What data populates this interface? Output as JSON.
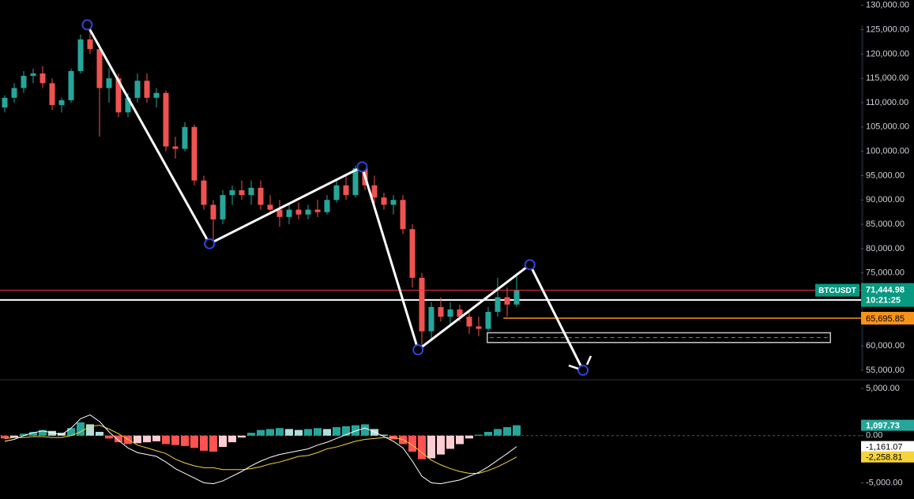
{
  "chart_data": [
    {
      "type": "candlestick",
      "symbol": "BTCUSDT",
      "countdown": "10:21:25",
      "ylim": [
        53200,
        131100
      ],
      "yticks": [
        {
          "value": 55000,
          "label": "55,000.00"
        },
        {
          "value": 60000,
          "label": "60,000.00"
        },
        {
          "value": 65000,
          "label": "65,000.00"
        },
        {
          "value": 70000,
          "label": "70,000.00"
        },
        {
          "value": 75000,
          "label": "75,000.00"
        },
        {
          "value": 80000,
          "label": "80,000.00"
        },
        {
          "value": 85000,
          "label": "85,000.00"
        },
        {
          "value": 90000,
          "label": "90,000.00"
        },
        {
          "value": 95000,
          "label": "95,000.00"
        },
        {
          "value": 100000,
          "label": "100,000.00"
        },
        {
          "value": 105000,
          "label": "105,000.00"
        },
        {
          "value": 110000,
          "label": "110,000.00"
        },
        {
          "value": 115000,
          "label": "115,000.00"
        },
        {
          "value": 120000,
          "label": "120,000.00"
        },
        {
          "value": 125000,
          "label": "125,000.00"
        },
        {
          "value": 130000,
          "label": "130,000.00"
        }
      ],
      "up_color": "#26a69a",
      "down_color": "#ef5350",
      "candles": {
        "open": [
          109000,
          111000,
          113000,
          115500,
          116000,
          114000,
          109500,
          110500,
          116500,
          123000,
          121000,
          113000,
          115000,
          108000,
          111000,
          114500,
          111000,
          112000,
          101000,
          100500,
          105000,
          94000,
          89000,
          86000,
          91000,
          92000,
          91000,
          92500,
          89000,
          88000,
          86500,
          88000,
          87000,
          88000,
          87500,
          90000,
          93000,
          91000,
          96500,
          93000,
          90500,
          89000,
          90000,
          84000,
          74000,
          63000,
          68000,
          66000,
          67500,
          66000,
          64000,
          63500,
          67000,
          70000,
          68500
        ],
        "high": [
          111500,
          114000,
          116500,
          117000,
          117500,
          115000,
          111000,
          117000,
          124000,
          126000,
          122000,
          117000,
          116000,
          112000,
          116000,
          116000,
          113000,
          112500,
          103000,
          106000,
          105500,
          95000,
          90000,
          92000,
          93000,
          94000,
          94000,
          94000,
          91000,
          90000,
          89000,
          89500,
          89000,
          90000,
          91000,
          94000,
          95000,
          97000,
          97000,
          95000,
          91500,
          91000,
          91000,
          85000,
          75000,
          69000,
          70000,
          69000,
          68500,
          67000,
          66000,
          68000,
          74000,
          72000,
          75000
        ],
        "low": [
          108000,
          110000,
          112000,
          114000,
          113000,
          108500,
          108000,
          110000,
          116000,
          120000,
          103000,
          110000,
          107000,
          107000,
          110000,
          110000,
          109000,
          100000,
          98500,
          100000,
          93000,
          88000,
          81000,
          85000,
          89000,
          90000,
          89000,
          88000,
          87000,
          84500,
          85000,
          86000,
          86000,
          86500,
          87000,
          89500,
          90000,
          90500,
          92000,
          89000,
          88000,
          87000,
          83000,
          72000,
          60000,
          61000,
          65000,
          64500,
          65000,
          62500,
          62000,
          63000,
          66000,
          66000,
          68000
        ],
        "close": [
          111000,
          113000,
          115500,
          116000,
          114000,
          109500,
          110500,
          116500,
          123000,
          121000,
          113000,
          115000,
          108000,
          111000,
          114500,
          111000,
          112000,
          101000,
          100500,
          105000,
          94000,
          89000,
          86000,
          91000,
          92000,
          91000,
          92500,
          89000,
          88000,
          86500,
          88000,
          87000,
          88000,
          87500,
          90000,
          93000,
          91000,
          96500,
          93000,
          90500,
          89000,
          90000,
          84000,
          74000,
          63000,
          68000,
          66000,
          67500,
          66000,
          64000,
          63500,
          67000,
          70000,
          68500,
          71444.98
        ],
        "last_label": "71,444.98",
        "last_color": "#f23645"
      },
      "lines": [
        {
          "value": 69450,
          "color": "#ffffff"
        }
      ],
      "levels": [
        {
          "value": 65695.85,
          "label": "65,695.85",
          "color": "#f7931a"
        }
      ],
      "zone": {
        "x": [
          50.9,
          87.1
        ],
        "values": [
          60700,
          62700
        ],
        "color": "#5b9c4a"
      },
      "pattern": {
        "x": [
          8.7,
          21.6,
          37.7,
          43.6,
          55.4,
          61.0
        ],
        "values": [
          126000,
          81000,
          96800,
          59200,
          76700,
          55000
        ],
        "color": "#ffffff",
        "point_color": "#2f45d6"
      }
    },
    {
      "type": "macd",
      "ylim": [
        -6720,
        5840
      ],
      "yticks": [
        {
          "value": 5000,
          "label": "5,000.00"
        },
        {
          "value": 0,
          "label": "0.00"
        },
        {
          "value": -5000,
          "label": "-5,000.00"
        }
      ],
      "histogram": {
        "values": [
          -300,
          -200,
          200,
          400,
          600,
          500,
          300,
          800,
          1400,
          1200,
          400,
          -300,
          -700,
          -900,
          -800,
          -700,
          -600,
          -900,
          -1000,
          -1100,
          -1300,
          -1600,
          -1700,
          -1200,
          -700,
          -200,
          300,
          600,
          700,
          800,
          700,
          600,
          700,
          800,
          700,
          900,
          1000,
          1100,
          1200,
          700,
          100,
          -400,
          -900,
          -1700,
          -2500,
          -2400,
          -2000,
          -1400,
          -900,
          -300,
          100,
          400,
          700,
          900,
          1097.73
        ],
        "last_label": "1,097.73",
        "colors": {
          "up_rising": "#26a69a",
          "up_falling": "#b2dfdb",
          "down_falling": "#ff5252",
          "down_rising": "#ffcdd2"
        }
      },
      "macd_line": {
        "values": [
          -600,
          -400,
          0,
          300,
          500,
          300,
          100,
          800,
          1800,
          2200,
          1500,
          400,
          -500,
          -1300,
          -1800,
          -2000,
          -2200,
          -2800,
          -3500,
          -4000,
          -4500,
          -5000,
          -5100,
          -4800,
          -4300,
          -3800,
          -3200,
          -2700,
          -2300,
          -2000,
          -1800,
          -1600,
          -1400,
          -1000,
          -700,
          -300,
          100,
          500,
          800,
          400,
          -100,
          -600,
          -1300,
          -2700,
          -4300,
          -5000,
          -5100,
          -4900,
          -4700,
          -4300,
          -3900,
          -3300,
          -2600,
          -1900,
          -1161.07
        ],
        "last_label": "-1,161.07",
        "color": "#ffffff"
      },
      "signal_line": {
        "values": [
          -300,
          -200,
          -200,
          -100,
          -100,
          -200,
          -200,
          0,
          400,
          1000,
          1100,
          700,
          200,
          -400,
          -1000,
          -1300,
          -1600,
          -1900,
          -2500,
          -2900,
          -3200,
          -3400,
          -3400,
          -3600,
          -3600,
          -3600,
          -3500,
          -3300,
          -3000,
          -2800,
          -2500,
          -2200,
          -2100,
          -1800,
          -1400,
          -1200,
          -900,
          -600,
          -400,
          -300,
          -200,
          -200,
          -400,
          -1000,
          -1800,
          -2600,
          -3100,
          -3500,
          -3800,
          -4000,
          -4000,
          -3700,
          -3300,
          -2800,
          -2258.81
        ],
        "last_label": "-2,258.81",
        "color": "#f5d33b"
      }
    }
  ]
}
